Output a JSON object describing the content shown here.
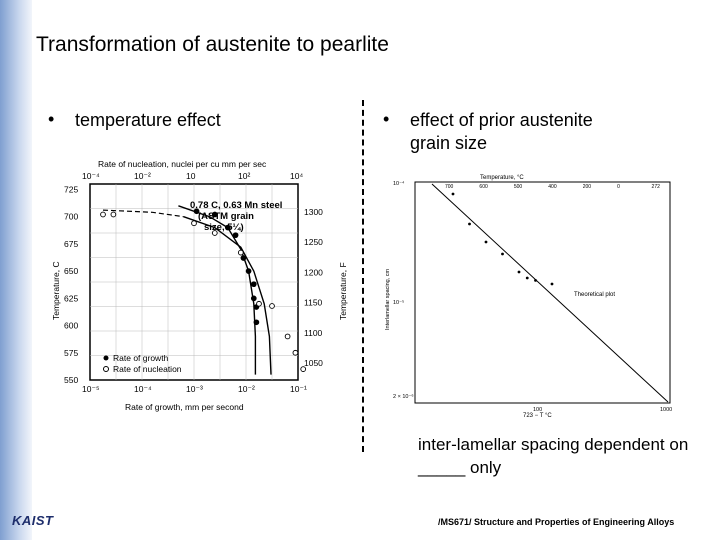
{
  "title": "Transformation of austenite to pearlite",
  "bullets": {
    "left": "temperature effect",
    "right_line1": "effect of prior austenite",
    "right_line2": "grain size",
    "marker": "•"
  },
  "note": {
    "line1": "inter-lamellar spacing dependent on",
    "line2": "_____ only"
  },
  "footer": "/MS671/ Structure and Properties of Engineering Alloys",
  "logo": "KAIST",
  "chart_data": [
    {
      "type": "line",
      "top_axis_label": "Rate of nucleation, nuclei per cu mm per sec",
      "top_ticks": [
        "10⁻⁴",
        "10⁻²",
        "10",
        "10²",
        "10⁴"
      ],
      "xlabel": "Rate of growth, mm per second",
      "x_ticks": [
        "10⁻⁵",
        "10⁻⁴",
        "10⁻³",
        "10⁻²",
        "10⁻¹"
      ],
      "ylabel": "Temperature, C",
      "y_ticks": [
        "725",
        "700",
        "675",
        "650",
        "625",
        "600",
        "575",
        "550"
      ],
      "y2label": "Temperature, F",
      "y2_ticks": [
        "1300",
        "1250",
        "1200",
        "1150",
        "1100",
        "1050"
      ],
      "annotation": [
        "0.78 C, 0.63 Mn steel",
        "(ASTM grain",
        "size, 5¼)"
      ],
      "legend": [
        "Rate of growth",
        "Rate of nucleation"
      ],
      "ylim": [
        550,
        730
      ],
      "series": [
        {
          "name": "Rate of growth",
          "marker": "filled",
          "points": [
            [
              -2.95,
              705
            ],
            [
              -2.6,
              702
            ],
            [
              -2.35,
              690
            ],
            [
              -2.2,
              683
            ],
            [
              -2.05,
              662
            ],
            [
              -1.95,
              650
            ],
            [
              -1.85,
              638
            ],
            [
              -1.85,
              625
            ],
            [
              -1.8,
              617
            ],
            [
              -1.8,
              603
            ]
          ]
        },
        {
          "name": "Rate of nucleation",
          "marker": "open",
          "points": [
            [
              -4.75,
              702
            ],
            [
              -4.55,
              702
            ],
            [
              -3.0,
              694
            ],
            [
              -2.6,
              685
            ],
            [
              -2.1,
              667
            ],
            [
              -1.75,
              620
            ],
            [
              -1.5,
              618
            ],
            [
              -1.2,
              590
            ],
            [
              -1.05,
              575
            ],
            [
              -0.9,
              560
            ]
          ]
        }
      ],
      "curves": {
        "growth": [
          [
            -3.3,
            710
          ],
          [
            -2.7,
            700
          ],
          [
            -2.35,
            690
          ],
          [
            -2.1,
            670
          ],
          [
            -1.95,
            650
          ],
          [
            -1.85,
            620
          ],
          [
            -1.82,
            590
          ],
          [
            -1.82,
            555
          ]
        ],
        "nucleation_dashed": [
          [
            -4.75,
            706
          ],
          [
            -3.8,
            704
          ],
          [
            -3.2,
            700
          ]
        ],
        "nucleation": [
          [
            -3.2,
            700
          ],
          [
            -2.6,
            690
          ],
          [
            -2.1,
            672
          ],
          [
            -1.85,
            650
          ],
          [
            -1.65,
            620
          ],
          [
            -1.55,
            590
          ],
          [
            -1.52,
            555
          ]
        ]
      }
    },
    {
      "type": "scatter",
      "top_axis_label": "Temperature, °C",
      "top_ticks": [
        "700",
        "600",
        "500",
        "400",
        "200",
        "0",
        "272"
      ],
      "xlabel": "723 − T °C",
      "x_ticks": [
        "100",
        "1000"
      ],
      "ylabel": "Interlamellar spacing, cm",
      "y_ticks": [
        "10⁻⁴",
        "10⁻⁵",
        "2 × 10⁻⁶"
      ],
      "annotation": "Theoretical plot",
      "points": [
        [
          1,
          1
        ],
        [
          2,
          0.75
        ],
        [
          3,
          0.6
        ],
        [
          4,
          0.5
        ],
        [
          5,
          0.35
        ],
        [
          5.5,
          0.3
        ],
        [
          6,
          0.28
        ],
        [
          7,
          0.25
        ]
      ]
    }
  ]
}
